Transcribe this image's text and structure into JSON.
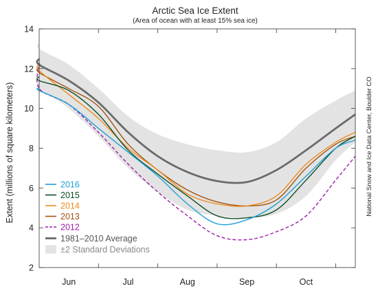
{
  "chart_data": {
    "type": "line",
    "title": "Arctic Sea Ice Extent",
    "subtitle": "(Area of ocean with at least 15% sea ice)",
    "xlabel": "",
    "ylabel": "Extent (millions of square kilometers)",
    "credit": "National Snow and Ice Data Center, Boulder CO",
    "xlim": [
      0,
      5.33
    ],
    "ylim": [
      2,
      14
    ],
    "x_unit": "months from 1 June",
    "yticks": [
      2,
      4,
      6,
      8,
      10,
      12,
      14
    ],
    "grid": false,
    "legend_position": "bottom-left",
    "categories": [
      {
        "label": "Jun",
        "x": 0.5
      },
      {
        "label": "Jul",
        "x": 1.5
      },
      {
        "label": "Aug",
        "x": 2.5
      },
      {
        "label": "Sep",
        "x": 3.5
      },
      {
        "label": "Oct",
        "x": 4.5
      }
    ],
    "x": [
      -0.33,
      0.0,
      0.5,
      1.0,
      1.5,
      2.0,
      2.5,
      3.0,
      3.5,
      4.0,
      4.5,
      5.0,
      5.33
    ],
    "band": {
      "name": "±2 Standard Deviations",
      "color": "#e3e3e3",
      "upper": [
        13.3,
        13.0,
        12.2,
        11.0,
        9.6,
        8.7,
        8.2,
        7.9,
        7.8,
        8.3,
        9.5,
        10.4,
        10.9
      ],
      "lower": [
        11.3,
        11.0,
        10.0,
        8.6,
        7.0,
        5.8,
        4.9,
        4.6,
        4.5,
        4.7,
        5.6,
        7.4,
        8.3
      ]
    },
    "series": [
      {
        "name": "1981–2010 Average",
        "color": "#6a6a6a",
        "dash": false,
        "width": 2.8,
        "values": [
          12.5,
          12.2,
          11.4,
          10.3,
          8.8,
          7.6,
          6.8,
          6.35,
          6.3,
          6.9,
          7.9,
          9.0,
          9.7
        ]
      },
      {
        "name": "2016",
        "color": "#1d9fd6",
        "dash": false,
        "width": 1.4,
        "values": [
          11.0,
          10.9,
          10.2,
          9.0,
          7.8,
          6.6,
          5.2,
          4.2,
          4.4,
          5.2,
          6.6,
          8.0,
          8.4
        ]
      },
      {
        "name": "2015",
        "color": "#0d4d23",
        "dash": false,
        "width": 1.4,
        "values": [
          11.6,
          11.4,
          10.9,
          9.7,
          7.9,
          6.7,
          5.6,
          4.6,
          4.5,
          4.9,
          6.4,
          8.0,
          8.6
        ]
      },
      {
        "name": "2014",
        "color": "#ee8a1a",
        "dash": false,
        "width": 1.4,
        "values": [
          12.2,
          11.9,
          10.7,
          9.5,
          8.0,
          6.9,
          5.7,
          5.2,
          5.1,
          5.6,
          7.2,
          8.3,
          8.8
        ]
      },
      {
        "name": "2013",
        "color": "#a05313",
        "dash": false,
        "width": 1.4,
        "values": [
          12.1,
          11.8,
          11.0,
          10.1,
          8.2,
          6.9,
          5.9,
          5.3,
          5.1,
          5.4,
          7.0,
          8.2,
          8.6
        ]
      },
      {
        "name": "2012",
        "color": "#9b1ea7",
        "dash": true,
        "width": 1.4,
        "values": [
          12.3,
          11.0,
          10.2,
          8.8,
          7.2,
          5.8,
          4.6,
          3.6,
          3.4,
          3.8,
          4.6,
          6.4,
          7.6
        ]
      }
    ]
  }
}
